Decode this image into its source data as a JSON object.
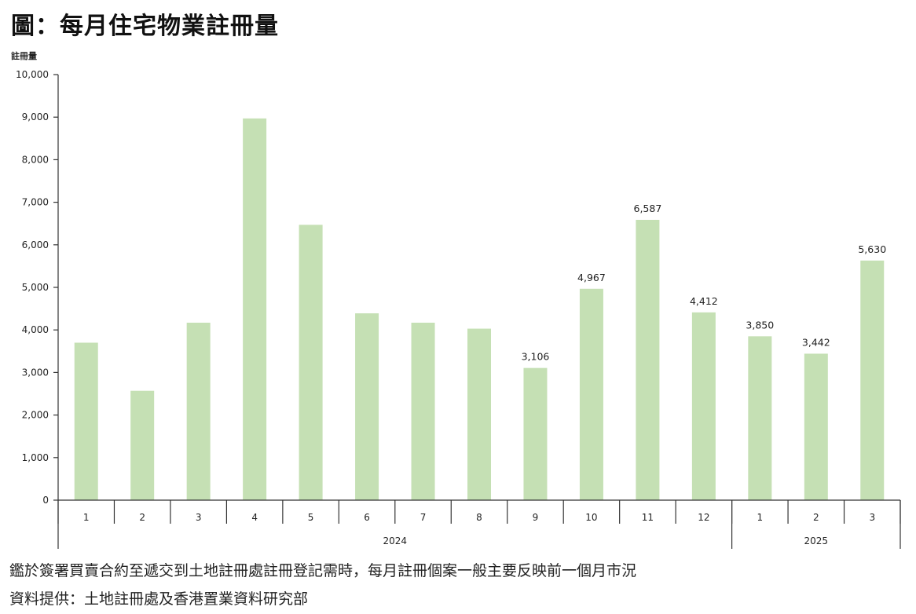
{
  "title": "圖：每月住宅物業註冊量",
  "notes": {
    "line1": "鑑於簽署買賣合約至遞交到土地註冊處註冊登記需時，每月註冊個案一般主要反映前一個月市況",
    "line2": "資料提供：土地註冊處及香港置業資料研究部"
  },
  "colors": {
    "bar": "#c5e0b4",
    "axis": "#333333"
  },
  "chart_data": {
    "type": "bar",
    "title": "圖：每月住宅物業註冊量",
    "ylabel": "註冊量",
    "ylim": [
      0,
      10000
    ],
    "yticks": [
      0,
      1000,
      2000,
      3000,
      4000,
      5000,
      6000,
      7000,
      8000,
      9000,
      10000
    ],
    "ytick_labels": [
      "0",
      "1,000",
      "2,000",
      "3,000",
      "4,000",
      "5,000",
      "6,000",
      "7,000",
      "8,000",
      "9,000",
      "10,000"
    ],
    "categories": [
      "1",
      "2",
      "3",
      "4",
      "5",
      "6",
      "7",
      "8",
      "9",
      "10",
      "11",
      "12",
      "1",
      "2",
      "3"
    ],
    "values": [
      3700,
      2570,
      4170,
      8970,
      6470,
      4390,
      4170,
      4030,
      3106,
      4967,
      6587,
      4412,
      3850,
      3442,
      5630
    ],
    "data_labels": [
      "",
      "",
      "",
      "",
      "",
      "",
      "",
      "",
      "3,106",
      "4,967",
      "6,587",
      "4,412",
      "3,850",
      "3,442",
      "5,630"
    ],
    "groups": [
      {
        "label": "2024",
        "count": 12
      },
      {
        "label": "2025",
        "count": 3
      }
    ],
    "grid": false,
    "legend": "none"
  }
}
